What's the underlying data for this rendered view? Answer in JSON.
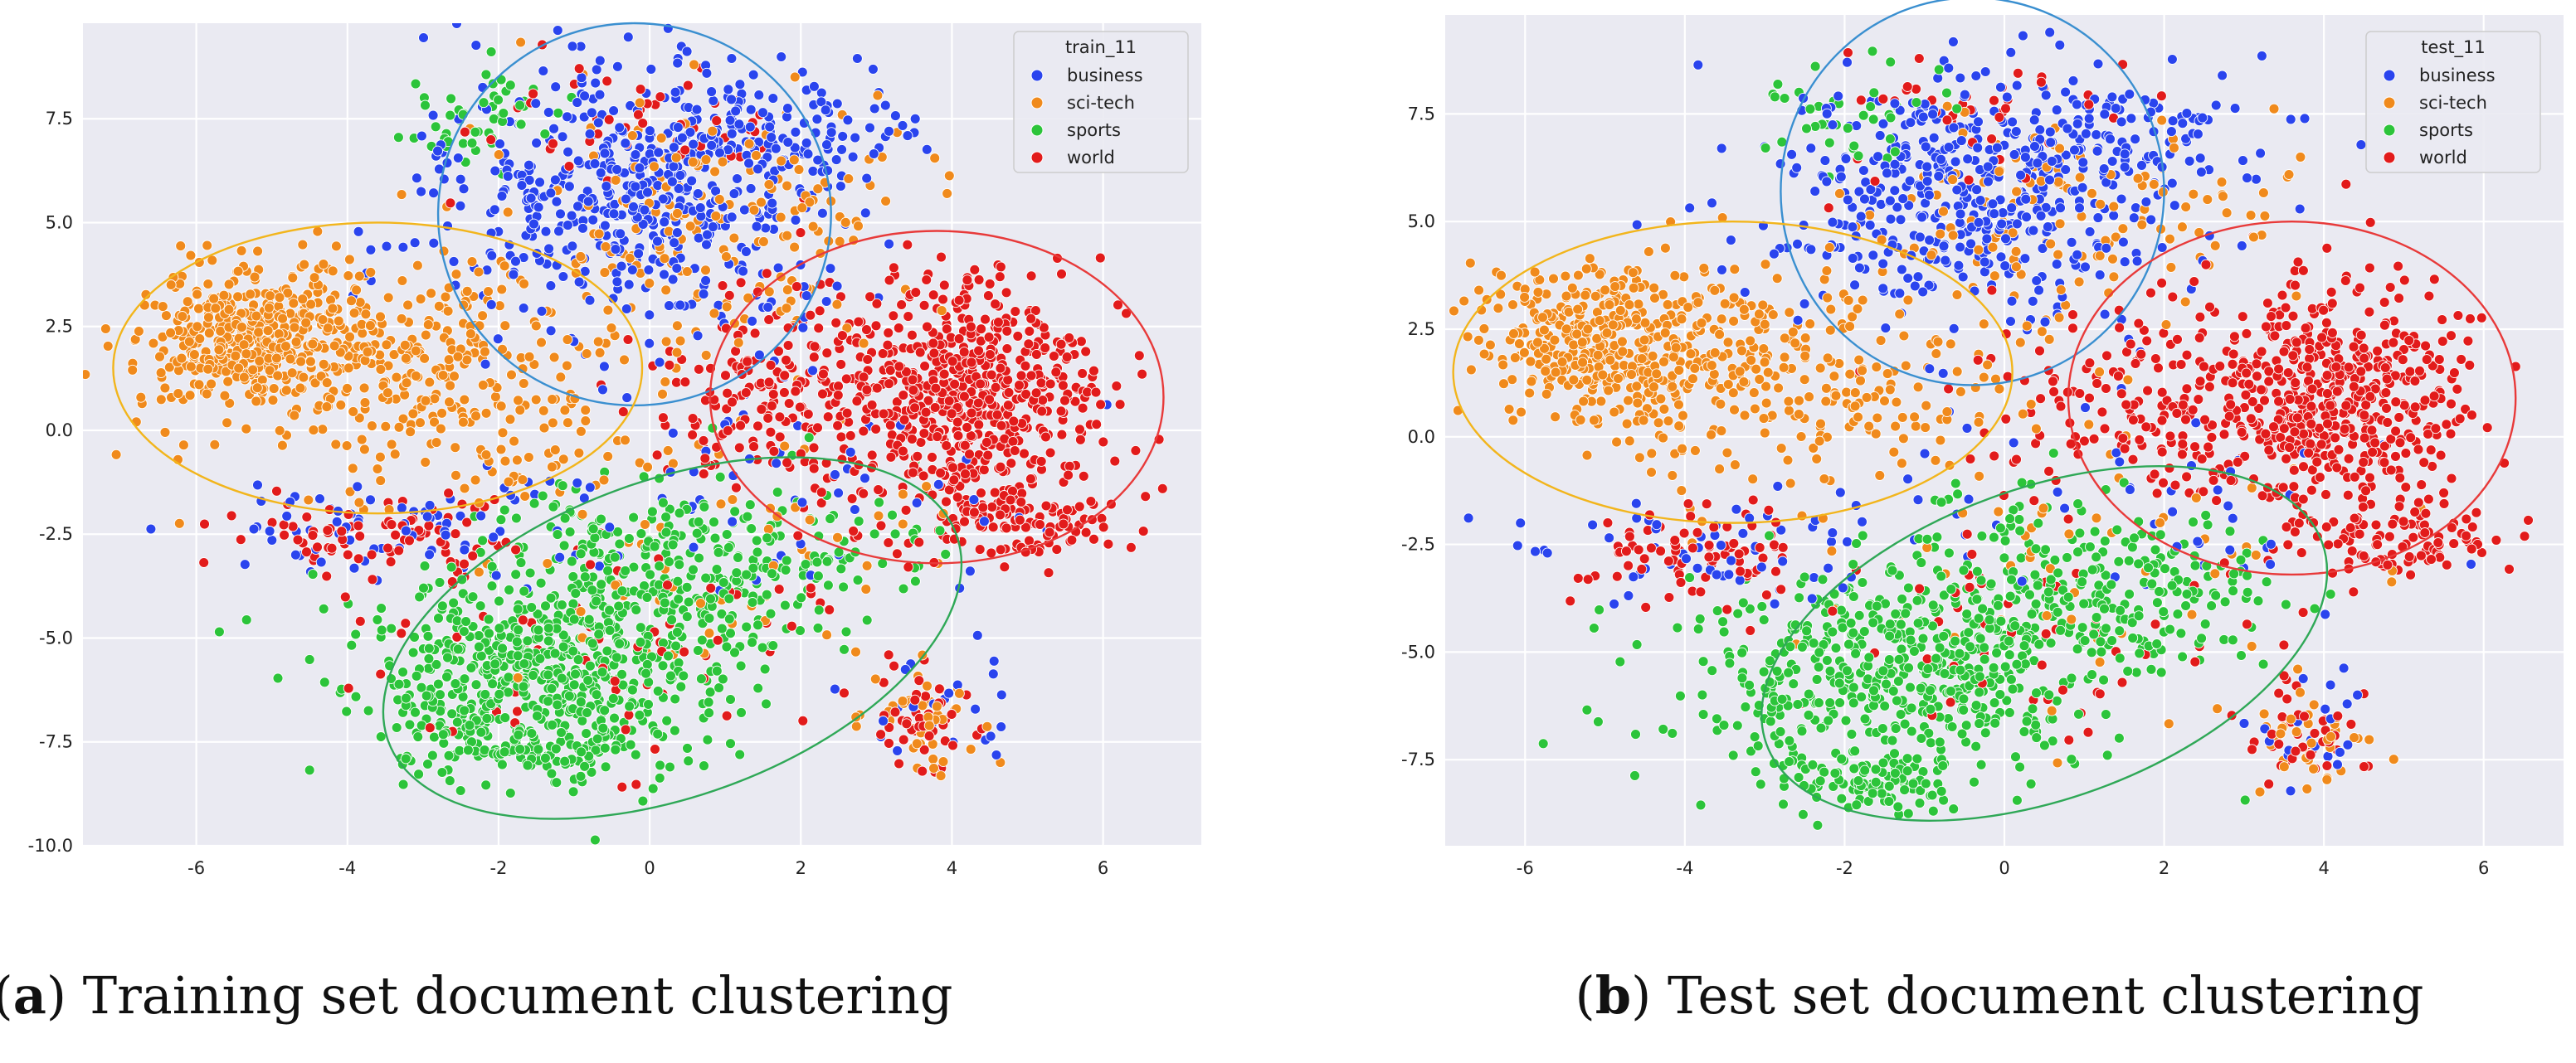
{
  "figure": {
    "captions": [
      {
        "letter": "a",
        "text": "Training set document clustering"
      },
      {
        "letter": "b",
        "text": "Test set document clustering"
      }
    ]
  },
  "chart_data": [
    {
      "type": "scatter",
      "title": "",
      "xlabel": "",
      "ylabel": "",
      "xlim": [
        -7.5,
        7.3
      ],
      "ylim": [
        -10.0,
        9.8
      ],
      "xticks": [
        -6,
        -4,
        -2,
        0,
        2,
        4,
        6
      ],
      "yticks": [
        7.5,
        5.0,
        2.5,
        0.0,
        -2.5,
        -5.0,
        -7.5,
        -10.0
      ],
      "grid": true,
      "legend": {
        "title": "train_11",
        "position": "top-right"
      },
      "series": [
        {
          "name": "business",
          "color": "#2a44ee",
          "clusters": [
            {
              "cx": -0.3,
              "cy": 5.6,
              "sx": 1.3,
              "sy": 1.6,
              "n": 520
            },
            {
              "cx": 1.5,
              "cy": 7.2,
              "sx": 0.9,
              "sy": 0.6,
              "n": 120
            },
            {
              "cx": -3.5,
              "cy": -2.5,
              "sx": 1.2,
              "sy": 0.6,
              "n": 70
            },
            {
              "cx": 1.5,
              "cy": -1.5,
              "sx": 1.8,
              "sy": 1.4,
              "n": 60
            },
            {
              "cx": 3.8,
              "cy": -6.5,
              "sx": 0.5,
              "sy": 0.8,
              "n": 25
            }
          ]
        },
        {
          "name": "sci-tech",
          "color": "#f08a1c",
          "clusters": [
            {
              "cx": -5.2,
              "cy": 2.2,
              "sx": 0.8,
              "sy": 0.9,
              "n": 420
            },
            {
              "cx": -3.0,
              "cy": 1.5,
              "sx": 1.5,
              "sy": 1.4,
              "n": 330
            },
            {
              "cx": 1.0,
              "cy": 5.2,
              "sx": 1.3,
              "sy": 1.6,
              "n": 170
            },
            {
              "cx": 3.5,
              "cy": -6.8,
              "sx": 0.45,
              "sy": 0.6,
              "n": 45
            },
            {
              "cx": 0.5,
              "cy": -3.0,
              "sx": 2.0,
              "sy": 2.0,
              "n": 70
            }
          ]
        },
        {
          "name": "sports",
          "color": "#2cc43a",
          "clusters": [
            {
              "cx": -1.5,
              "cy": -5.8,
              "sx": 1.3,
              "sy": 1.1,
              "n": 560
            },
            {
              "cx": 0.5,
              "cy": -3.2,
              "sx": 1.3,
              "sy": 1.0,
              "n": 320
            },
            {
              "cx": -2.2,
              "cy": 7.5,
              "sx": 0.5,
              "sy": 0.6,
              "n": 50
            },
            {
              "cx": -1.5,
              "cy": -7.6,
              "sx": 0.9,
              "sy": 0.4,
              "n": 120
            }
          ]
        },
        {
          "name": "world",
          "color": "#e21b1b",
          "clusters": [
            {
              "cx": 4.3,
              "cy": 0.8,
              "sx": 0.8,
              "sy": 1.4,
              "n": 560
            },
            {
              "cx": 2.0,
              "cy": 1.0,
              "sx": 1.0,
              "sy": 1.2,
              "n": 230
            },
            {
              "cx": 5.0,
              "cy": -2.2,
              "sx": 0.7,
              "sy": 0.5,
              "n": 110
            },
            {
              "cx": -3.6,
              "cy": -2.5,
              "sx": 0.9,
              "sy": 0.5,
              "n": 90
            },
            {
              "cx": 3.6,
              "cy": -6.8,
              "sx": 0.4,
              "sy": 0.6,
              "n": 45
            },
            {
              "cx": -0.5,
              "cy": -5.0,
              "sx": 1.5,
              "sy": 1.6,
              "n": 70
            },
            {
              "cx": 0.0,
              "cy": 7.6,
              "sx": 1.0,
              "sy": 0.8,
              "n": 50
            }
          ]
        }
      ],
      "annotations": [
        {
          "type": "ellipse",
          "color": "#3a8fd0",
          "cx": -0.2,
          "cy": 5.2,
          "rx": 2.6,
          "ry": 4.6,
          "angle": 0
        },
        {
          "type": "ellipse",
          "color": "#f2b51c",
          "cx": -3.6,
          "cy": 1.5,
          "rx": 3.5,
          "ry": 3.5,
          "angle": 0
        },
        {
          "type": "ellipse",
          "color": "#e83a3a",
          "cx": 3.8,
          "cy": 0.8,
          "rx": 3.0,
          "ry": 4.0,
          "angle": 0
        },
        {
          "type": "ellipse",
          "color": "#2fa857",
          "cx": 0.3,
          "cy": -5.0,
          "rx": 4.0,
          "ry": 3.8,
          "angle": -20
        }
      ]
    },
    {
      "type": "scatter",
      "title": "",
      "xlabel": "",
      "ylabel": "",
      "xlim": [
        -7.0,
        7.0
      ],
      "ylim": [
        -9.5,
        9.8
      ],
      "xticks": [
        -6,
        -4,
        -2,
        0,
        2,
        4,
        6
      ],
      "yticks": [
        7.5,
        5.0,
        2.5,
        0.0,
        -2.5,
        -5.0,
        -7.5
      ],
      "grid": true,
      "legend": {
        "title": "test_11",
        "position": "top-right"
      },
      "series": [
        {
          "name": "business",
          "color": "#2a44ee",
          "clusters": [
            {
              "cx": -0.4,
              "cy": 5.6,
              "sx": 1.2,
              "sy": 1.5,
              "n": 460
            },
            {
              "cx": 1.6,
              "cy": 7.0,
              "sx": 0.9,
              "sy": 0.6,
              "n": 100
            },
            {
              "cx": -3.8,
              "cy": -2.6,
              "sx": 1.1,
              "sy": 0.6,
              "n": 60
            },
            {
              "cx": 1.5,
              "cy": -1.5,
              "sx": 1.7,
              "sy": 1.3,
              "n": 50
            },
            {
              "cx": 3.8,
              "cy": -6.8,
              "sx": 0.4,
              "sy": 0.6,
              "n": 20
            }
          ]
        },
        {
          "name": "sci-tech",
          "color": "#f08a1c",
          "clusters": [
            {
              "cx": -5.0,
              "cy": 2.2,
              "sx": 0.8,
              "sy": 0.9,
              "n": 360
            },
            {
              "cx": -3.0,
              "cy": 1.4,
              "sx": 1.4,
              "sy": 1.3,
              "n": 280
            },
            {
              "cx": 1.0,
              "cy": 5.0,
              "sx": 1.3,
              "sy": 1.5,
              "n": 140
            },
            {
              "cx": 3.8,
              "cy": -7.0,
              "sx": 0.45,
              "sy": 0.6,
              "n": 40
            },
            {
              "cx": 0.5,
              "cy": -3.0,
              "sx": 2.0,
              "sy": 2.0,
              "n": 60
            }
          ]
        },
        {
          "name": "sports",
          "color": "#2cc43a",
          "clusters": [
            {
              "cx": -1.3,
              "cy": -5.6,
              "sx": 1.4,
              "sy": 1.1,
              "n": 500
            },
            {
              "cx": 1.0,
              "cy": -3.6,
              "sx": 1.3,
              "sy": 1.0,
              "n": 280
            },
            {
              "cx": -2.0,
              "cy": 7.5,
              "sx": 0.6,
              "sy": 0.6,
              "n": 40
            },
            {
              "cx": -1.8,
              "cy": -8.0,
              "sx": 0.8,
              "sy": 0.4,
              "n": 100
            }
          ]
        },
        {
          "name": "world",
          "color": "#e21b1b",
          "clusters": [
            {
              "cx": 4.2,
              "cy": 0.9,
              "sx": 0.8,
              "sy": 1.3,
              "n": 500
            },
            {
              "cx": 2.0,
              "cy": 0.8,
              "sx": 1.0,
              "sy": 1.1,
              "n": 200
            },
            {
              "cx": 5.0,
              "cy": -2.4,
              "sx": 0.7,
              "sy": 0.5,
              "n": 90
            },
            {
              "cx": -3.8,
              "cy": -2.6,
              "sx": 0.9,
              "sy": 0.5,
              "n": 80
            },
            {
              "cx": 3.8,
              "cy": -7.0,
              "sx": 0.4,
              "sy": 0.6,
              "n": 40
            },
            {
              "cx": 0.5,
              "cy": -4.8,
              "sx": 1.5,
              "sy": 1.4,
              "n": 60
            },
            {
              "cx": 0.0,
              "cy": 7.6,
              "sx": 1.0,
              "sy": 0.8,
              "n": 40
            }
          ]
        }
      ],
      "annotations": [
        {
          "type": "ellipse",
          "color": "#3a8fd0",
          "cx": -0.4,
          "cy": 5.7,
          "rx": 2.4,
          "ry": 4.5,
          "angle": 0
        },
        {
          "type": "ellipse",
          "color": "#f2b51c",
          "cx": -3.4,
          "cy": 1.5,
          "rx": 3.5,
          "ry": 3.5,
          "angle": 0
        },
        {
          "type": "ellipse",
          "color": "#e83a3a",
          "cx": 3.6,
          "cy": 0.9,
          "rx": 2.8,
          "ry": 4.1,
          "angle": 0
        },
        {
          "type": "ellipse",
          "color": "#2fa857",
          "cx": 0.5,
          "cy": -4.8,
          "rx": 3.7,
          "ry": 3.6,
          "angle": -20
        }
      ]
    }
  ]
}
